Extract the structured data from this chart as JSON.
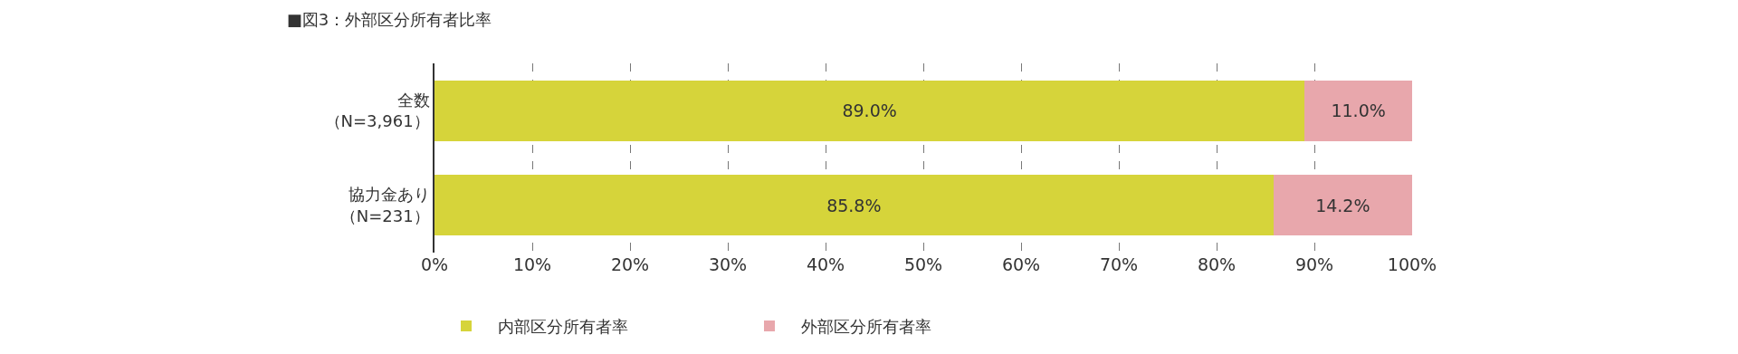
{
  "chart_data": {
    "type": "bar",
    "orientation": "horizontal",
    "stacked": true,
    "title": "■図3：外部区分所有者比率",
    "categories": [
      "全数（N=3,961）",
      "協力金あり（N=231）"
    ],
    "series": [
      {
        "name": "内部区分所有者率",
        "color": "#d6d43a",
        "values": [
          89.0,
          85.8
        ],
        "value_labels": [
          "89.0%",
          "85.8%"
        ]
      },
      {
        "name": "外部区分所有者率",
        "color": "#e8a7ac",
        "values": [
          11.0,
          14.2
        ],
        "value_labels": [
          "11.0%",
          "14.2%"
        ]
      }
    ],
    "xlim": [
      0,
      100
    ],
    "xticks": [
      {
        "value": 0,
        "label": "0%"
      },
      {
        "value": 10,
        "label": "10%"
      },
      {
        "value": 20,
        "label": "20%"
      },
      {
        "value": 30,
        "label": "30%"
      },
      {
        "value": 40,
        "label": "40%"
      },
      {
        "value": 50,
        "label": "50%"
      },
      {
        "value": 60,
        "label": "60%"
      },
      {
        "value": 70,
        "label": "70%"
      },
      {
        "value": 80,
        "label": "80%"
      },
      {
        "value": 90,
        "label": "90%"
      },
      {
        "value": 100,
        "label": "100%"
      }
    ],
    "grid": "x",
    "legend": "bottom left"
  }
}
